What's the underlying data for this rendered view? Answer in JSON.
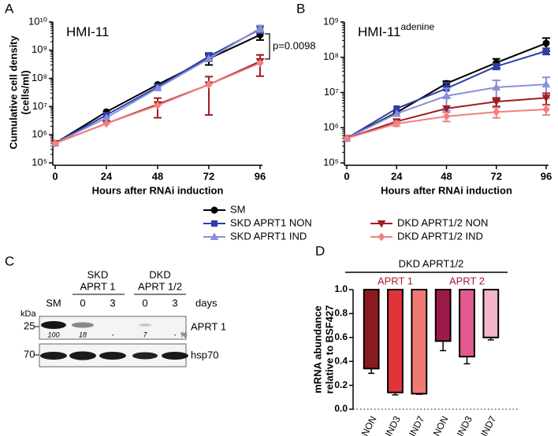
{
  "chart_data": [
    {
      "type": "line",
      "panel": "A",
      "title": "HMI-11",
      "annotation": "p=0.0098",
      "xlabel": "Hours after RNAi induction",
      "ylabel": [
        "Cumulative cell density",
        "(cells/ml)"
      ],
      "x": [
        0,
        24,
        48,
        72,
        96
      ],
      "xlim": [
        0,
        96
      ],
      "xticks": [
        0,
        24,
        48,
        72,
        96
      ],
      "log_y": true,
      "ylim": [
        100000,
        10000000000
      ],
      "yticks": [
        {
          "value": 100000,
          "label": "10⁵"
        },
        {
          "value": 1000000,
          "label": "10⁶"
        },
        {
          "value": 10000000,
          "label": "10⁷"
        },
        {
          "value": 100000000,
          "label": "10⁸"
        },
        {
          "value": 1000000000,
          "label": "10⁹"
        },
        {
          "value": 10000000000,
          "label": "10¹⁰"
        }
      ],
      "legend": "below",
      "series": [
        {
          "name": "SM",
          "color": "#000000",
          "marker": "circle",
          "values": [
            500000,
            6500000,
            60000000,
            500000000,
            3500000000
          ],
          "errors": [
            null,
            null,
            null,
            200000000,
            1200000000
          ]
        },
        {
          "name": "SKD APRT1 NON",
          "color": "#2b3fa8",
          "marker": "square",
          "values": [
            500000,
            5000000,
            50000000,
            600000000,
            5500000000
          ],
          "errors": [
            null,
            null,
            null,
            200000000,
            1500000000
          ]
        },
        {
          "name": "SKD APRT1 IND",
          "color": "#8a8fd6",
          "marker": "triangle",
          "values": [
            500000,
            4000000,
            45000000,
            500000000,
            6000000000
          ],
          "errors": [
            null,
            null,
            null,
            null,
            1500000000
          ]
        },
        {
          "name": "DKD APRT1/2 NON",
          "color": "#a01c24",
          "marker": "triangle-down",
          "values": [
            500000,
            2500000,
            12000000,
            60000000,
            400000000
          ],
          "errors": [
            null,
            null,
            8000000,
            55000000,
            280000000
          ]
        },
        {
          "name": "DKD APRT1/2 IND",
          "color": "#f08080",
          "marker": "diamond",
          "values": [
            500000,
            2500000,
            11000000,
            60000000,
            350000000
          ],
          "errors": [
            null,
            null,
            null,
            null,
            null
          ]
        }
      ]
    },
    {
      "type": "line",
      "panel": "B",
      "title": "HMI-11",
      "title_sup": "adenine",
      "xlabel": "Hours after RNAi induction",
      "x": [
        0,
        24,
        48,
        72,
        96
      ],
      "xlim": [
        0,
        96
      ],
      "xticks": [
        0,
        24,
        48,
        72,
        96
      ],
      "log_y": true,
      "ylim": [
        100000,
        1000000000
      ],
      "yticks": [
        {
          "value": 100000,
          "label": "10⁵"
        },
        {
          "value": 1000000,
          "label": "10⁶"
        },
        {
          "value": 10000000,
          "label": "10⁷"
        },
        {
          "value": 100000000,
          "label": "10⁸"
        },
        {
          "value": 1000000000,
          "label": "10⁹"
        }
      ],
      "series": [
        {
          "color": "#000000",
          "marker": "circle",
          "values": [
            500000,
            2700000,
            18000000,
            70000000,
            250000000
          ],
          "errors": [
            null,
            null,
            3000000,
            20000000,
            100000000
          ]
        },
        {
          "color": "#2b3fa8",
          "marker": "square",
          "values": [
            500000,
            3500000,
            13000000,
            55000000,
            150000000
          ],
          "errors": [
            null,
            null,
            6000000,
            10000000,
            30000000
          ]
        },
        {
          "color": "#8a8fd6",
          "marker": "triangle",
          "values": [
            500000,
            2500000,
            8000000,
            14000000,
            17000000
          ],
          "errors": [
            null,
            null,
            5000000,
            8000000,
            10000000
          ]
        },
        {
          "color": "#a01c24",
          "marker": "triangle-down",
          "values": [
            500000,
            1500000,
            3500000,
            5500000,
            7000000
          ],
          "errors": [
            null,
            null,
            null,
            1500000,
            2500000
          ]
        },
        {
          "color": "#f08080",
          "marker": "diamond",
          "values": [
            500000,
            1300000,
            2100000,
            2800000,
            3300000
          ],
          "errors": [
            null,
            200000,
            600000,
            900000,
            1000000
          ]
        }
      ]
    },
    {
      "type": "bar",
      "panel": "D",
      "ylabel": [
        "mRNA abundance",
        "relative to BSF427"
      ],
      "group_title": "DKD APRT1/2",
      "groups": [
        "APRT 1",
        "APRT 2"
      ],
      "group_colors": [
        "#b01a2a",
        "#a0184e"
      ],
      "categories": [
        "NON",
        "IND3",
        "IND7",
        "NON",
        "IND3",
        "IND7"
      ],
      "values": [
        0.34,
        0.14,
        0.13,
        0.57,
        0.44,
        0.6
      ],
      "errors": [
        0.04,
        0.02,
        0.005,
        0.08,
        0.06,
        0.02
      ],
      "colors": [
        "#8b1a1e",
        "#e0343a",
        "#f07a72",
        "#9c1a4a",
        "#e05a90",
        "#f4b4cc"
      ],
      "ylim": [
        0,
        1
      ],
      "yticks": [
        {
          "value": 0,
          "label": "0.0"
        },
        0.2,
        0.4,
        0.6,
        0.8,
        {
          "value": 1,
          "label": "1.0"
        }
      ]
    }
  ],
  "blot": {
    "panel": "C",
    "groups": [
      [
        "SKD",
        "APRT 1"
      ],
      [
        "DKD",
        "APRT 1/2"
      ]
    ],
    "lanes": [
      "SM",
      "0",
      "3",
      "0",
      "3"
    ],
    "time_unit": "days",
    "mw_unit": "kDa",
    "markers": [
      "25",
      "70"
    ],
    "bands": [
      "APRT 1",
      "hsp70"
    ],
    "quantification": [
      "100",
      "18",
      "-",
      "7",
      "-"
    ],
    "quant_unit": "%"
  }
}
